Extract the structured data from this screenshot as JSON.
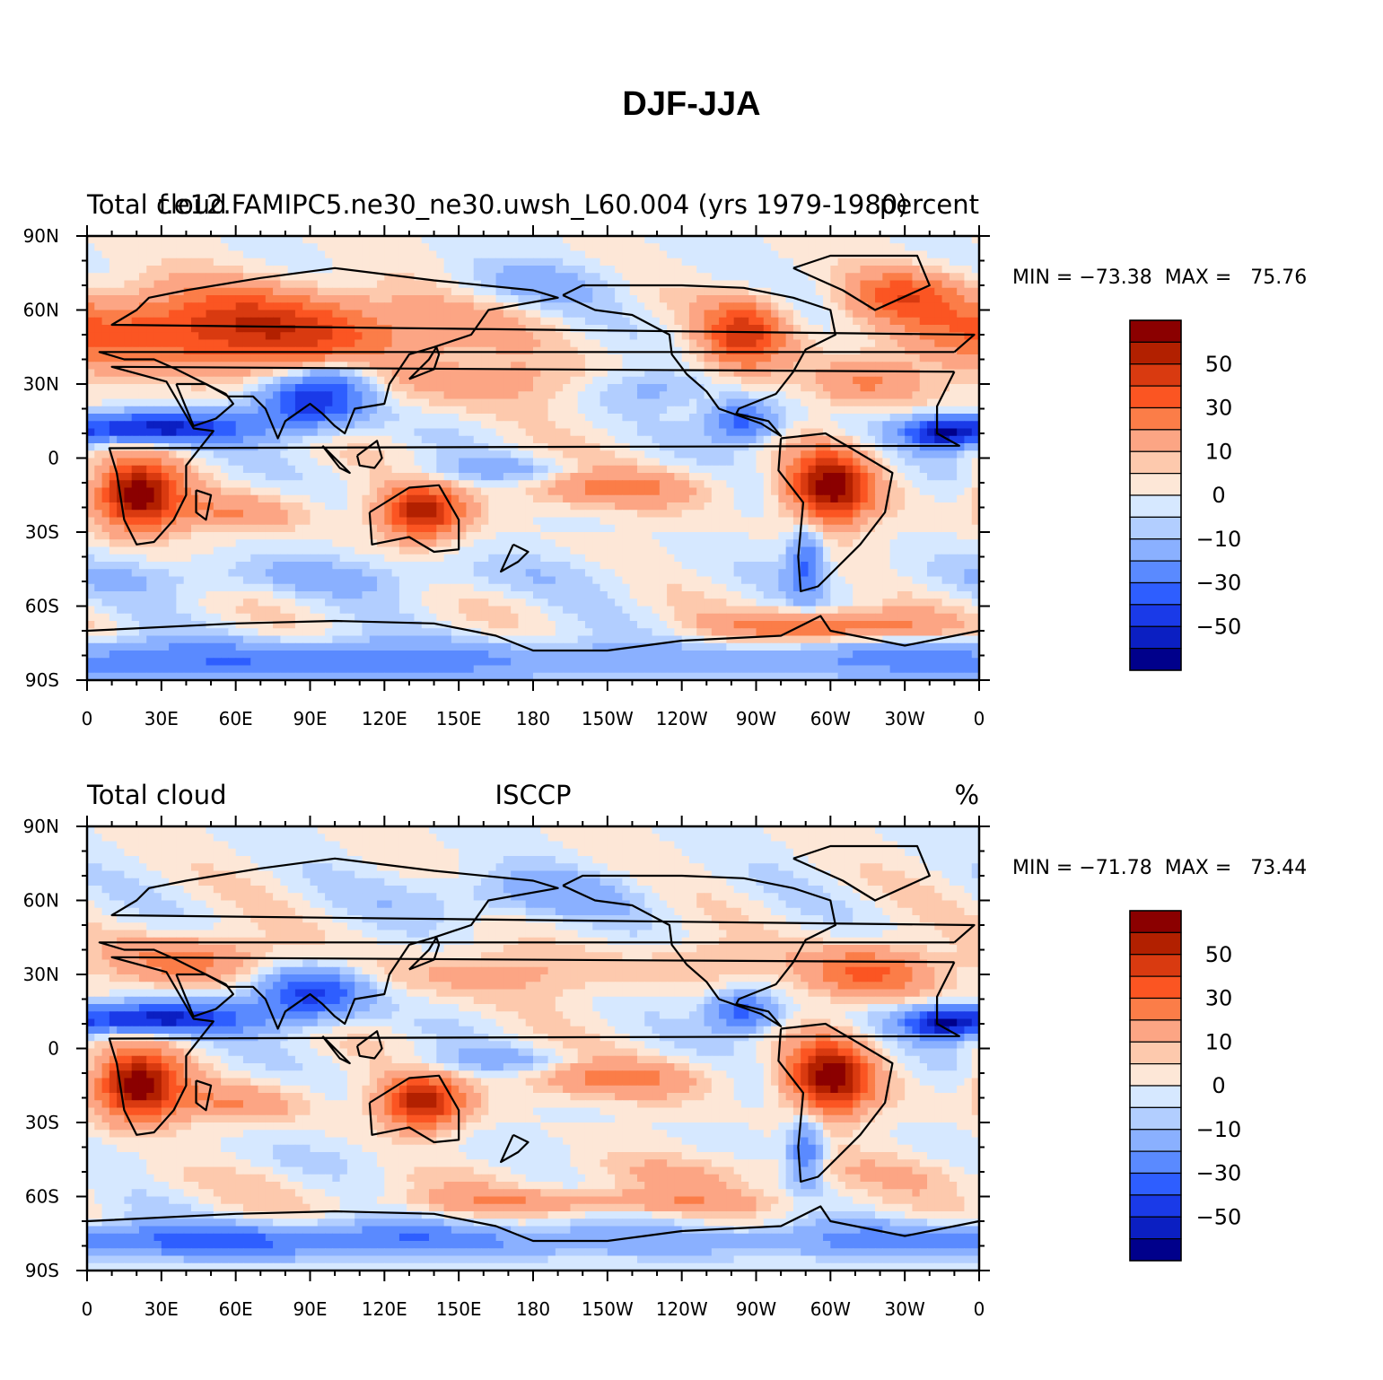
{
  "title": "DJF-JJA",
  "panels": [
    {
      "left_title": "Total cloud",
      "center_title": "f.e12.FAMIPC5.ne30_ne30.uwsh_L60.004 (yrs 1979-1980)",
      "right_title": "percent",
      "stats": "MIN = −73.38  MAX =   75.76",
      "field": "model"
    },
    {
      "left_title": "Total cloud",
      "center_title": "ISCCP",
      "right_title": "%",
      "stats": "MIN = −71.78  MAX =   73.44",
      "field": "obs"
    }
  ],
  "axes": {
    "lat_labels": [
      "90N",
      "60N",
      "30N",
      "0",
      "30S",
      "60S",
      "90S"
    ],
    "lon_labels": [
      "0",
      "30E",
      "60E",
      "90E",
      "120E",
      "150E",
      "180",
      "150W",
      "120W",
      "90W",
      "60W",
      "30W",
      "0"
    ]
  },
  "colorbar": {
    "labels": [
      "50",
      "30",
      "10",
      "0",
      "−10",
      "−30",
      "−50"
    ],
    "colors": [
      "#8b0000",
      "#b22000",
      "#d93a10",
      "#fb5522",
      "#fb7d48",
      "#fca584",
      "#fdc9ad",
      "#fde7d7",
      "#d6e8ff",
      "#b2ceff",
      "#8ab0ff",
      "#5a8aff",
      "#2e5eff",
      "#1a3ae8",
      "#0b1fc2",
      "#00008b"
    ]
  },
  "colors": {
    "coast": "#000000",
    "frame": "#000000"
  }
}
